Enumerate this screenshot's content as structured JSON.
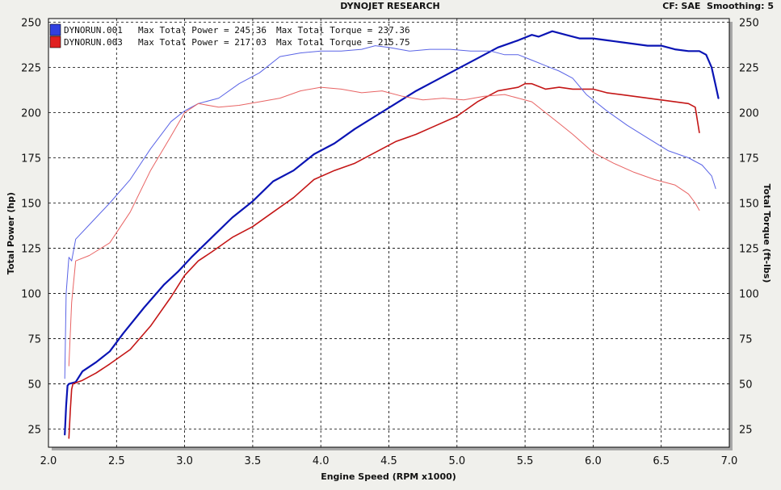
{
  "header": {
    "title": "DYNOJET RESEARCH",
    "right": "CF: SAE  Smoothing: 5"
  },
  "chart_data": {
    "type": "line",
    "title": "DYNOJET RESEARCH",
    "xlabel": "Engine Speed (RPM x1000)",
    "ylabel_left": "Total Power (hp)",
    "ylabel_right": "Total Torque (ft-lbs)",
    "xlim": [
      2.0,
      7.0
    ],
    "ylim": [
      15,
      252
    ],
    "x_ticks": [
      "2.0",
      "2.5",
      "3.0",
      "3.5",
      "4.0",
      "4.5",
      "5.0",
      "5.5",
      "6.0",
      "6.5",
      "7.0"
    ],
    "y_ticks": [
      "25",
      "50",
      "75",
      "100",
      "125",
      "150",
      "175",
      "200",
      "225",
      "250"
    ],
    "grid": true,
    "legend_position": "top-left",
    "legend": [
      {
        "run": "DYNORUN.001",
        "power_text": "Max Total Power = 245.36",
        "torque_text": "Max Total Torque = 237.36",
        "color": "#1414c8"
      },
      {
        "run": "DYNORUN.003",
        "power_text": "Max Total Power = 217.03",
        "torque_text": "Max Total Torque = 215.75",
        "color": "#d01818"
      }
    ],
    "series": [
      {
        "name": "DYNORUN.001 Power",
        "color": "#0a14b4",
        "width": 2.2,
        "x": [
          2.12,
          2.13,
          2.14,
          2.15,
          2.2,
          2.25,
          2.35,
          2.45,
          2.55,
          2.7,
          2.85,
          2.95,
          3.05,
          3.2,
          3.35,
          3.5,
          3.65,
          3.8,
          3.95,
          4.1,
          4.25,
          4.4,
          4.55,
          4.7,
          4.85,
          5.0,
          5.15,
          5.3,
          5.45,
          5.55,
          5.6,
          5.7,
          5.8,
          5.9,
          6.0,
          6.1,
          6.2,
          6.3,
          6.4,
          6.5,
          6.6,
          6.7,
          6.78,
          6.83,
          6.87,
          6.9,
          6.92
        ],
        "y": [
          22,
          38,
          49,
          50,
          51,
          57,
          62,
          68,
          78,
          92,
          105,
          112,
          120,
          131,
          142,
          151,
          162,
          168,
          177,
          183,
          191,
          198,
          205,
          212,
          218,
          224,
          230,
          236,
          240,
          243,
          242,
          245,
          243,
          241,
          241,
          240,
          239,
          238,
          237,
          237,
          235,
          234,
          234,
          232,
          225,
          215,
          208
        ]
      },
      {
        "name": "DYNORUN.003 Power",
        "color": "#c41616",
        "width": 1.6,
        "x": [
          2.15,
          2.16,
          2.17,
          2.18,
          2.25,
          2.35,
          2.45,
          2.6,
          2.75,
          2.9,
          3.0,
          3.1,
          3.2,
          3.35,
          3.5,
          3.65,
          3.8,
          3.95,
          4.1,
          4.25,
          4.4,
          4.55,
          4.7,
          4.85,
          5.0,
          5.15,
          5.3,
          5.45,
          5.5,
          5.55,
          5.65,
          5.75,
          5.85,
          6.0,
          6.1,
          6.2,
          6.3,
          6.4,
          6.5,
          6.6,
          6.7,
          6.75,
          6.78
        ],
        "y": [
          20,
          35,
          47,
          50,
          52,
          56,
          61,
          69,
          82,
          98,
          110,
          118,
          123,
          131,
          137,
          145,
          153,
          163,
          168,
          172,
          178,
          184,
          188,
          193,
          198,
          206,
          212,
          214,
          216,
          216,
          213,
          214,
          213,
          213,
          211,
          210,
          209,
          208,
          207,
          206,
          205,
          203,
          189
        ]
      },
      {
        "name": "DYNORUN.001 Torque",
        "color": "#5a64e6",
        "width": 1,
        "x": [
          2.12,
          2.13,
          2.15,
          2.17,
          2.2,
          2.3,
          2.45,
          2.6,
          2.75,
          2.9,
          3.0,
          3.1,
          3.25,
          3.4,
          3.55,
          3.7,
          3.85,
          4.0,
          4.15,
          4.3,
          4.4,
          4.5,
          4.65,
          4.8,
          4.95,
          5.1,
          5.25,
          5.35,
          5.45,
          5.55,
          5.65,
          5.75,
          5.85,
          5.95,
          6.1,
          6.25,
          6.4,
          6.55,
          6.7,
          6.8,
          6.87,
          6.9
        ],
        "y": [
          53,
          100,
          120,
          118,
          130,
          138,
          150,
          163,
          180,
          195,
          201,
          205,
          208,
          216,
          222,
          231,
          233,
          234,
          234,
          235,
          237,
          236,
          234,
          235,
          235,
          234,
          234,
          232,
          232,
          229,
          226,
          223,
          219,
          210,
          201,
          193,
          186,
          179,
          175,
          171,
          165,
          158
        ]
      },
      {
        "name": "DYNORUN.003 Torque",
        "color": "#e86464",
        "width": 1,
        "x": [
          2.15,
          2.17,
          2.2,
          2.3,
          2.45,
          2.6,
          2.75,
          2.9,
          3.0,
          3.1,
          3.25,
          3.4,
          3.55,
          3.7,
          3.85,
          4.0,
          4.15,
          4.3,
          4.45,
          4.6,
          4.75,
          4.9,
          5.05,
          5.2,
          5.35,
          5.45,
          5.55,
          5.65,
          5.75,
          5.85,
          6.0,
          6.15,
          6.3,
          6.45,
          6.6,
          6.7,
          6.75,
          6.78
        ],
        "y": [
          60,
          95,
          118,
          121,
          128,
          145,
          168,
          187,
          200,
          205,
          203,
          204,
          206,
          208,
          212,
          214,
          213,
          211,
          212,
          209,
          207,
          208,
          207,
          209,
          210,
          208,
          206,
          200,
          194,
          188,
          178,
          172,
          167,
          163,
          160,
          155,
          150,
          146
        ]
      }
    ]
  }
}
